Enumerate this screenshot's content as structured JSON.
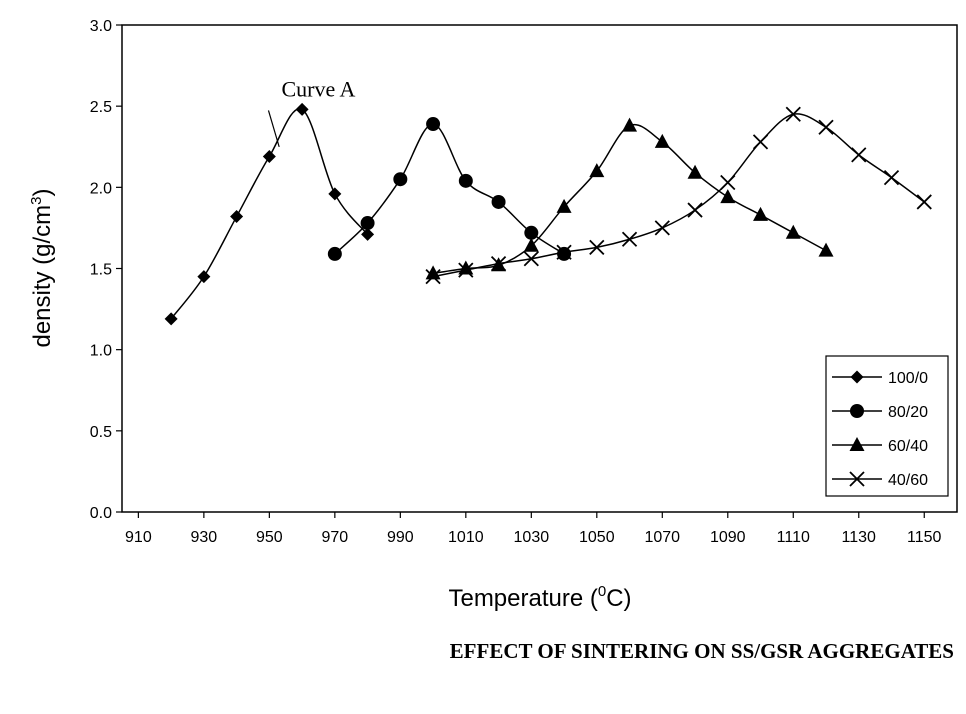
{
  "chart_data": {
    "type": "line",
    "title": "EFFECT OF SINTERING ON SS/GSR AGGREGATES",
    "xlabel": "Temperature (0C)",
    "xlabel_parts": {
      "pre": "Temperature (",
      "sup": "0",
      "post": "C)"
    },
    "ylabel": "density (g/cm3)",
    "ylabel_parts": {
      "pre": "density (g/cm",
      "sup": "3",
      "post": ")"
    },
    "xlim": [
      905,
      1160
    ],
    "ylim": [
      0.0,
      3.0
    ],
    "xticks": [
      910,
      930,
      950,
      970,
      990,
      1010,
      1030,
      1050,
      1070,
      1090,
      1110,
      1130,
      1150
    ],
    "yticks": [
      "0.0",
      "0.5",
      "1.0",
      "1.5",
      "2.0",
      "2.5",
      "3.0"
    ],
    "grid": false,
    "legend_position": "bottom-right",
    "annotation": {
      "text": "Curve A",
      "x": 965,
      "y": 2.56,
      "target_x": 953,
      "target_y": 2.2
    },
    "series": [
      {
        "name": "100/0",
        "marker": "diamond",
        "x": [
          920,
          930,
          940,
          950,
          960,
          970,
          980
        ],
        "y": [
          1.19,
          1.45,
          1.82,
          2.19,
          2.48,
          1.96,
          1.71
        ]
      },
      {
        "name": "80/20",
        "marker": "circle",
        "x": [
          970,
          980,
          990,
          1000,
          1010,
          1020,
          1030,
          1040
        ],
        "y": [
          1.59,
          1.78,
          2.05,
          2.39,
          2.04,
          1.91,
          1.72,
          1.59
        ]
      },
      {
        "name": "60/40",
        "marker": "triangle",
        "x": [
          1000,
          1010,
          1020,
          1030,
          1040,
          1050,
          1060,
          1070,
          1080,
          1090,
          1100,
          1110,
          1120
        ],
        "y": [
          1.47,
          1.5,
          1.52,
          1.64,
          1.88,
          2.1,
          2.38,
          2.28,
          2.09,
          1.94,
          1.83,
          1.72,
          1.61
        ]
      },
      {
        "name": "40/60",
        "marker": "x",
        "x": [
          1000,
          1010,
          1020,
          1030,
          1040,
          1050,
          1060,
          1070,
          1080,
          1090,
          1100,
          1110,
          1120,
          1130,
          1140,
          1150
        ],
        "y": [
          1.45,
          1.49,
          1.53,
          1.56,
          1.6,
          1.63,
          1.68,
          1.75,
          1.86,
          2.03,
          2.28,
          2.45,
          2.37,
          2.2,
          2.06,
          1.91
        ]
      }
    ]
  }
}
